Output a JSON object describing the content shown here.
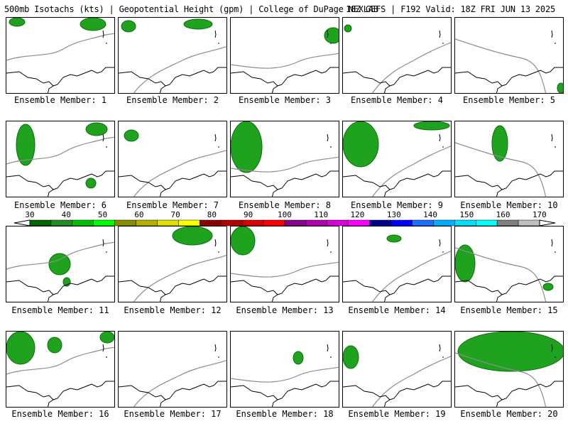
{
  "header": {
    "left": "500mb Isotachs (kts) | Geopotential Height (gpm) | College of DuPage NEXLAB",
    "right": "18Z GEFS | F192 Valid: 18Z FRI JUN 13 2025"
  },
  "members": [
    "Ensemble Member: 1",
    "Ensemble Member: 2",
    "Ensemble Member: 3",
    "Ensemble Member: 4",
    "Ensemble Member: 5",
    "Ensemble Member: 6",
    "Ensemble Member: 7",
    "Ensemble Member: 8",
    "Ensemble Member: 9",
    "Ensemble Member: 10",
    "Ensemble Member: 11",
    "Ensemble Member: 12",
    "Ensemble Member: 13",
    "Ensemble Member: 14",
    "Ensemble Member: 15",
    "Ensemble Member: 16",
    "Ensemble Member: 17",
    "Ensemble Member: 18",
    "Ensemble Member: 19",
    "Ensemble Member: 20"
  ],
  "colorbar": {
    "ticks": [
      "30",
      "40",
      "50",
      "60",
      "70",
      "80",
      "90",
      "100",
      "110",
      "120",
      "130",
      "140",
      "150",
      "160",
      "170"
    ],
    "colors": [
      "#006400",
      "#228b22",
      "#00c000",
      "#00ff00",
      "#8b8b00",
      "#b8b000",
      "#e0e000",
      "#ffff00",
      "#8b0000",
      "#b00000",
      "#d80000",
      "#ff0000",
      "#8b008b",
      "#b000b0",
      "#d800d8",
      "#ff00ff",
      "#00008b",
      "#0000ff",
      "#1e6fff",
      "#00b0ff",
      "#00e0ff",
      "#00ffff",
      "#808080",
      "#c0c0c0"
    ]
  },
  "colors": {
    "isotach_fill": "#1fa31f",
    "isotach_dark": "#0b6e0b",
    "height_contour": "#8c8c8c",
    "coastline": "#000000"
  }
}
